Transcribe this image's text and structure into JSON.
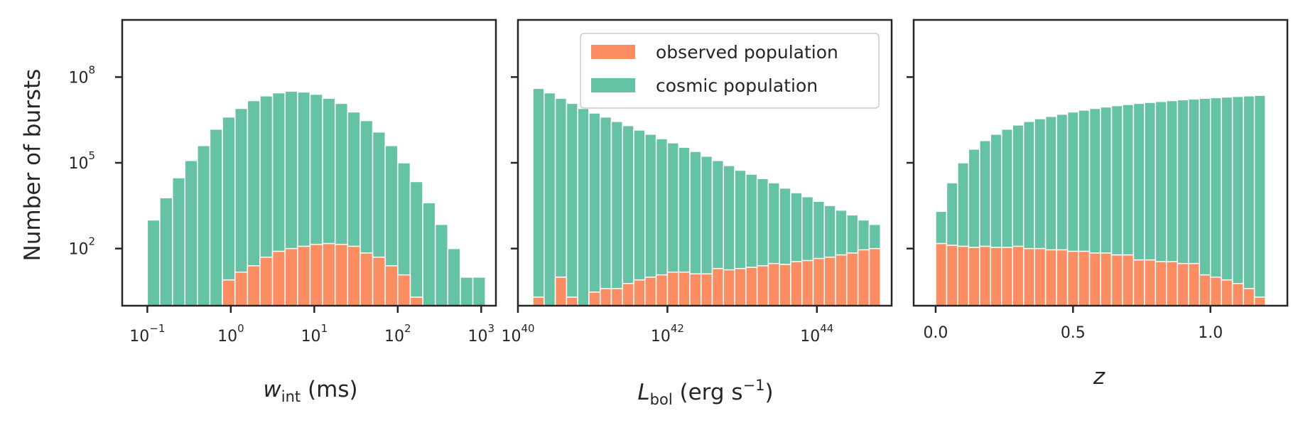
{
  "colors": {
    "observed": "#fc8d62",
    "cosmic": "#66c2a5",
    "axis": "#262626",
    "bar_edge": "#ffffff"
  },
  "ylabel": "Number of bursts",
  "ylabel_parts": {
    "base": "Number of bursts"
  },
  "legend": {
    "placement": "upper-right",
    "observed": "observed population",
    "cosmic": "cosmic population"
  },
  "chart_data": [
    {
      "type": "bar",
      "panel": "w_int",
      "x_scale": "log",
      "y_scale": "log",
      "xlim": [
        0.05,
        1500
      ],
      "ylim": [
        1,
        10000000000.0
      ],
      "xticks": [
        0.1,
        1,
        10,
        100,
        1000
      ],
      "xtick_labels": [
        {
          "base": "10",
          "exp": "−1"
        },
        {
          "base": "10",
          "exp": "0"
        },
        {
          "base": "10",
          "exp": "1"
        },
        {
          "base": "10",
          "exp": "2"
        },
        {
          "base": "10",
          "exp": "3"
        }
      ],
      "yticks": [
        100,
        100000,
        100000000
      ],
      "ytick_labels": [
        {
          "base": "10",
          "exp": "2"
        },
        {
          "base": "10",
          "exp": "5"
        },
        {
          "base": "10",
          "exp": "8"
        }
      ],
      "xlabel_parts": {
        "sym": "w",
        "sub": "int",
        "unit": " (ms)"
      },
      "bin_edges": [
        0.1,
        0.141,
        0.2,
        0.282,
        0.398,
        0.562,
        0.794,
        1.122,
        1.585,
        2.239,
        3.162,
        4.467,
        6.31,
        8.913,
        12.589,
        17.783,
        25.119,
        35.481,
        50.119,
        70.795,
        100,
        141.25,
        199.53,
        281.84,
        398.11,
        562.34,
        794.33,
        1122.02
      ],
      "series": [
        {
          "name": "cosmic population",
          "values": [
            1000,
            6000,
            30000,
            120000,
            400000,
            1500000,
            4000000,
            8000000,
            15000000,
            22000000,
            28000000,
            32000000,
            30000000,
            25000000,
            18000000,
            12000000,
            6000000,
            3000000,
            1200000,
            400000,
            100000,
            22000,
            4000,
            700,
            100,
            10,
            10
          ]
        },
        {
          "name": "observed population",
          "values": [
            null,
            null,
            null,
            null,
            null,
            null,
            8,
            15,
            25,
            50,
            80,
            100,
            120,
            140,
            150,
            140,
            120,
            70,
            50,
            25,
            12,
            2,
            null,
            null,
            null,
            null,
            null
          ]
        }
      ]
    },
    {
      "type": "bar",
      "panel": "L_bol",
      "x_scale": "log",
      "y_scale": "log",
      "xlim": [
        1e+40,
        1e+45
      ],
      "ylim": [
        1,
        10000000000.0
      ],
      "xticks": [
        1e+40,
        1e+42,
        1e+44
      ],
      "xtick_labels": [
        {
          "base": "10",
          "exp": "40"
        },
        {
          "base": "10",
          "exp": "42"
        },
        {
          "base": "10",
          "exp": "44"
        }
      ],
      "xlabel_parts": {
        "sym": "L",
        "sub": "bol",
        "unit_a": " (erg s",
        "unit_exp": "−1",
        "unit_b": ")"
      },
      "bin_edges": [
        1.585e+40,
        2.239e+40,
        3.162e+40,
        4.467e+40,
        6.31e+40,
        8.913e+40,
        1.259e+41,
        1.778e+41,
        2.512e+41,
        3.548e+41,
        5.012e+41,
        7.079e+41,
        1e+42,
        1.413e+42,
        1.995e+42,
        2.818e+42,
        3.981e+42,
        5.623e+42,
        7.943e+42,
        1.122e+43,
        1.585e+43,
        2.239e+43,
        3.162e+43,
        4.467e+43,
        6.31e+43,
        8.913e+43,
        1.259e+44,
        1.778e+44,
        2.512e+44,
        3.548e+44,
        5.012e+44,
        7.079e+44
      ],
      "series": [
        {
          "name": "cosmic population",
          "values": [
            40000000,
            28000000,
            18000000,
            12000000,
            8000000,
            5500000,
            4000000,
            2800000,
            2000000,
            1400000,
            1000000,
            700000,
            500000,
            350000,
            250000,
            170000,
            120000,
            80000,
            55000,
            40000,
            28000,
            20000,
            13000,
            9000,
            6500,
            4500,
            3200,
            2200,
            1500,
            1000,
            700
          ]
        },
        {
          "name": "observed population",
          "values": [
            2,
            1,
            10,
            2,
            1,
            3,
            4,
            4,
            6,
            8,
            10,
            12,
            15,
            15,
            13,
            13,
            20,
            18,
            20,
            22,
            25,
            30,
            28,
            35,
            38,
            45,
            50,
            60,
            70,
            90,
            100
          ]
        }
      ]
    },
    {
      "type": "bar",
      "panel": "z",
      "x_scale": "linear",
      "y_scale": "log",
      "xlim": [
        -0.08,
        1.28
      ],
      "ylim": [
        1,
        10000000000.0
      ],
      "xticks": [
        0.0,
        0.5,
        1.0
      ],
      "xtick_labels": [
        "0.0",
        "0.5",
        "1.0"
      ],
      "xlabel_parts": {
        "sym": "z"
      },
      "bin_edges": [
        0,
        0.04,
        0.08,
        0.12,
        0.16,
        0.2,
        0.24,
        0.28,
        0.32,
        0.36,
        0.4,
        0.44,
        0.48,
        0.52,
        0.56,
        0.6,
        0.64,
        0.68,
        0.72,
        0.76,
        0.8,
        0.84,
        0.88,
        0.92,
        0.96,
        1.0,
        1.04,
        1.08,
        1.12,
        1.16,
        1.2
      ],
      "series": [
        {
          "name": "cosmic population",
          "values": [
            2000,
            20000,
            100000,
            300000,
            600000,
            1000000,
            1500000,
            2100000,
            2800000,
            3500000,
            4200000,
            5000000,
            6000000,
            7000000,
            8000000,
            9000000,
            10000000,
            11000000,
            12000000,
            13000000,
            14000000,
            15000000,
            16000000,
            17000000,
            18000000,
            19000000,
            20000000,
            21000000,
            22000000,
            23000000
          ]
        },
        {
          "name": "observed population",
          "values": [
            150,
            130,
            120,
            110,
            120,
            110,
            110,
            120,
            100,
            100,
            90,
            90,
            80,
            80,
            70,
            70,
            60,
            60,
            40,
            40,
            35,
            35,
            30,
            30,
            12,
            10,
            8,
            6,
            4,
            2
          ]
        }
      ]
    }
  ]
}
